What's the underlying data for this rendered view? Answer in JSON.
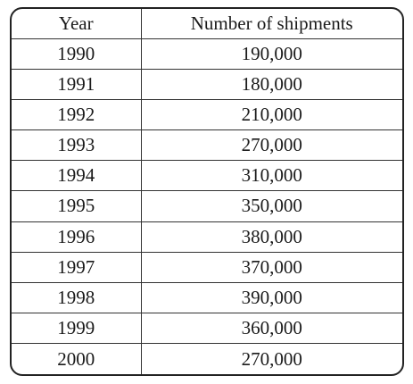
{
  "chart_data": {
    "type": "table",
    "columns": [
      "Year",
      "Number of shipments"
    ],
    "rows": [
      [
        "1990",
        "190,000"
      ],
      [
        "1991",
        "180,000"
      ],
      [
        "1992",
        "210,000"
      ],
      [
        "1993",
        "270,000"
      ],
      [
        "1994",
        "310,000"
      ],
      [
        "1995",
        "350,000"
      ],
      [
        "1996",
        "380,000"
      ],
      [
        "1997",
        "370,000"
      ],
      [
        "1998",
        "390,000"
      ],
      [
        "1999",
        "360,000"
      ],
      [
        "2000",
        "270,000"
      ]
    ],
    "x": [
      1990,
      1991,
      1992,
      1993,
      1994,
      1995,
      1996,
      1997,
      1998,
      1999,
      2000
    ],
    "values": [
      190000,
      180000,
      210000,
      270000,
      310000,
      350000,
      380000,
      370000,
      390000,
      360000,
      270000
    ]
  }
}
